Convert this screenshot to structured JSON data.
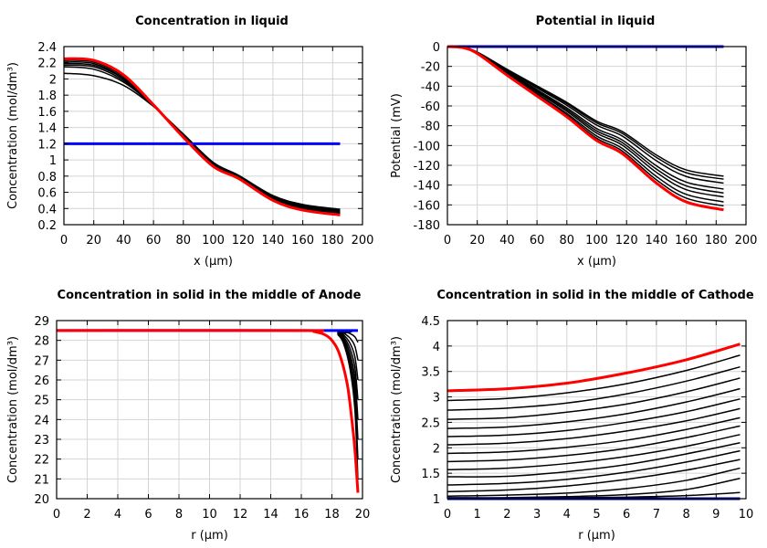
{
  "chart_data": [
    {
      "type": "line",
      "title": "Concentration in liquid",
      "xlabel": "x (µm)",
      "ylabel": "Concentration (mol/dm³)",
      "xlim": [
        0,
        200
      ],
      "ylim": [
        0.2,
        2.4
      ],
      "xticks": [
        0,
        20,
        40,
        60,
        80,
        100,
        120,
        140,
        160,
        180,
        200
      ],
      "yticks": [
        0.2,
        0.4,
        0.6,
        0.8,
        1,
        1.2,
        1.4,
        1.6,
        1.8,
        2,
        2.2,
        2.4
      ],
      "grid": true,
      "x": [
        0,
        20,
        40,
        60,
        80,
        100,
        117,
        140,
        160,
        185
      ],
      "series": [
        {
          "color": "#000000",
          "values": [
            2.07,
            2.04,
            1.92,
            1.66,
            1.32,
            0.97,
            0.81,
            0.56,
            0.45,
            0.39
          ]
        },
        {
          "color": "#000000",
          "values": [
            2.15,
            2.12,
            1.96,
            1.67,
            1.31,
            0.96,
            0.8,
            0.55,
            0.44,
            0.38
          ]
        },
        {
          "color": "#000000",
          "values": [
            2.17,
            2.15,
            1.98,
            1.67,
            1.31,
            0.95,
            0.8,
            0.54,
            0.43,
            0.37
          ]
        },
        {
          "color": "#000000",
          "values": [
            2.19,
            2.17,
            2.0,
            1.67,
            1.3,
            0.95,
            0.79,
            0.53,
            0.42,
            0.36
          ]
        },
        {
          "color": "#000000",
          "values": [
            2.21,
            2.19,
            2.01,
            1.67,
            1.3,
            0.94,
            0.79,
            0.52,
            0.41,
            0.35
          ]
        },
        {
          "color": "#000000",
          "values": [
            2.23,
            2.21,
            2.03,
            1.68,
            1.29,
            0.93,
            0.78,
            0.51,
            0.4,
            0.34
          ]
        },
        {
          "color": "#0000ff",
          "values": [
            1.2,
            1.2,
            1.2,
            1.2,
            1.2,
            1.2,
            1.2,
            1.2,
            1.2,
            1.2
          ]
        },
        {
          "color": "#ff0000",
          "values": [
            2.25,
            2.23,
            2.05,
            1.68,
            1.28,
            0.92,
            0.77,
            0.5,
            0.38,
            0.32
          ]
        }
      ]
    },
    {
      "type": "line",
      "title": "Potential in liquid",
      "xlabel": "x (µm)",
      "ylabel": "Potential (mV)",
      "xlim": [
        0,
        200
      ],
      "ylim": [
        -180,
        0
      ],
      "xticks": [
        0,
        20,
        40,
        60,
        80,
        100,
        120,
        140,
        160,
        180,
        200
      ],
      "yticks": [
        -180,
        -160,
        -140,
        -120,
        -100,
        -80,
        -60,
        -40,
        -20,
        0
      ],
      "grid": true,
      "x": [
        0,
        10,
        20,
        40,
        60,
        80,
        100,
        117,
        140,
        160,
        185
      ],
      "series": [
        {
          "color": "#000000",
          "values": [
            0,
            -0.8,
            -5.6,
            -23,
            -39.7,
            -56.4,
            -75.4,
            -85.8,
            -109.6,
            -124.7,
            -131
          ]
        },
        {
          "color": "#000000",
          "values": [
            0,
            -0.8,
            -5.7,
            -23.5,
            -40.6,
            -57.7,
            -77.1,
            -87.7,
            -112,
            -127.5,
            -134
          ]
        },
        {
          "color": "#000000",
          "values": [
            0,
            -0.8,
            -5.9,
            -24.2,
            -41.8,
            -59.4,
            -79.4,
            -90.3,
            -115.4,
            -131.3,
            -138
          ]
        },
        {
          "color": "#000000",
          "values": [
            0,
            -0.9,
            -6.1,
            -25.3,
            -43.6,
            -62,
            -82.9,
            -94.3,
            -120.5,
            -137,
            -144
          ]
        },
        {
          "color": "#000000",
          "values": [
            0,
            -0.9,
            -6.3,
            -26,
            -44.9,
            -63.7,
            -85.2,
            -96.9,
            -123.8,
            -140.8,
            -148
          ]
        },
        {
          "color": "#000000",
          "values": [
            0,
            -0.9,
            -6.4,
            -26.7,
            -46,
            -65.4,
            -87.5,
            -99.5,
            -127.1,
            -144.6,
            -152
          ]
        },
        {
          "color": "#000000",
          "values": [
            0,
            -1,
            -6.7,
            -27.6,
            -47.6,
            -67.6,
            -90.4,
            -102.8,
            -131.3,
            -149.4,
            -157
          ]
        },
        {
          "color": "#000000",
          "values": [
            0,
            -1,
            -6.8,
            -28.3,
            -48.8,
            -69.3,
            -92.7,
            -105.4,
            -134.7,
            -153.2,
            -161
          ]
        },
        {
          "color": "#0000ff",
          "values": [
            0,
            0,
            0,
            0,
            0,
            0,
            0,
            0,
            0,
            0,
            0
          ]
        },
        {
          "color": "#ff0000",
          "values": [
            0,
            -1,
            -7,
            -29,
            -50,
            -71,
            -95,
            -108,
            -138,
            -157,
            -165
          ]
        }
      ]
    },
    {
      "type": "line",
      "title": "Concentration in solid in the middle of Anode",
      "xlabel": "r (µm)",
      "ylabel": "Concentration (mol/dm³)",
      "xlim": [
        0,
        20
      ],
      "ylim": [
        20,
        29
      ],
      "xticks": [
        0,
        2,
        4,
        6,
        8,
        10,
        12,
        14,
        16,
        18,
        20
      ],
      "yticks": [
        20,
        21,
        22,
        23,
        24,
        25,
        26,
        27,
        28,
        29
      ],
      "grid": true,
      "x": [
        0,
        17.8,
        18.4,
        18.8,
        19.2,
        19.5,
        19.7
      ],
      "series": [
        {
          "color": "#000000",
          "values": [
            28.5,
            28.5,
            28.28,
            27.75,
            26.48,
            24.53,
            21.0
          ]
        },
        {
          "color": "#000000",
          "values": [
            28.5,
            28.5,
            28.31,
            27.85,
            26.75,
            25.06,
            22.0
          ]
        },
        {
          "color": "#000000",
          "values": [
            28.5,
            28.5,
            28.34,
            27.95,
            27.02,
            25.59,
            23.0
          ]
        },
        {
          "color": "#000000",
          "values": [
            28.5,
            28.5,
            28.37,
            28.05,
            27.29,
            26.12,
            24.0
          ]
        },
        {
          "color": "#000000",
          "values": [
            28.5,
            28.5,
            28.4,
            28.15,
            27.56,
            26.65,
            25.0
          ]
        },
        {
          "color": "#000000",
          "values": [
            28.5,
            28.5,
            28.43,
            28.25,
            27.83,
            27.18,
            26.0
          ]
        },
        {
          "color": "#000000",
          "values": [
            28.5,
            28.5,
            28.46,
            28.35,
            28.1,
            27.71,
            27.0
          ]
        },
        {
          "color": "#000000",
          "values": [
            28.5,
            28.5,
            28.48,
            28.44,
            28.34,
            28.18,
            27.9
          ]
        },
        {
          "color": "#0000ff",
          "values": [
            28.5,
            28.5,
            28.5,
            28.5,
            28.5,
            28.5,
            28.5
          ]
        },
        {
          "color": "#ff0000",
          "x": [
            0,
            16,
            16.8,
            17.5,
            18,
            18.5,
            19,
            19.3,
            19.5,
            19.7
          ],
          "values": [
            28.5,
            28.5,
            28.45,
            28.3,
            28.0,
            27.3,
            25.8,
            24.0,
            22.5,
            20.3
          ]
        }
      ]
    },
    {
      "type": "line",
      "title": "Concentration in solid in the middle of Cathode",
      "xlabel": "r (µm)",
      "ylabel": "Concentration (mol/dm³)",
      "xlim": [
        0,
        10
      ],
      "ylim": [
        1,
        4.5
      ],
      "xticks": [
        0,
        1,
        2,
        3,
        4,
        5,
        6,
        7,
        8,
        9,
        10
      ],
      "yticks": [
        1,
        1.5,
        2,
        2.5,
        3,
        3.5,
        4,
        4.5
      ],
      "grid": true,
      "x": [
        0,
        2,
        4,
        6,
        8,
        9.8
      ],
      "series": [
        {
          "color": "#000000",
          "values": [
            2.93,
            2.97,
            3.08,
            3.26,
            3.52,
            3.82
          ]
        },
        {
          "color": "#000000",
          "values": [
            2.74,
            2.78,
            2.88,
            3.06,
            3.31,
            3.59
          ]
        },
        {
          "color": "#000000",
          "values": [
            2.56,
            2.59,
            2.7,
            2.86,
            3.1,
            3.37
          ]
        },
        {
          "color": "#000000",
          "values": [
            2.38,
            2.41,
            2.51,
            2.67,
            2.9,
            3.16
          ]
        },
        {
          "color": "#000000",
          "values": [
            2.22,
            2.25,
            2.34,
            2.5,
            2.71,
            2.96
          ]
        },
        {
          "color": "#000000",
          "values": [
            2.06,
            2.09,
            2.18,
            2.33,
            2.53,
            2.77
          ]
        },
        {
          "color": "#000000",
          "values": [
            1.89,
            1.92,
            2.01,
            2.15,
            2.36,
            2.59
          ]
        },
        {
          "color": "#000000",
          "values": [
            1.73,
            1.76,
            1.85,
            1.99,
            2.2,
            2.43
          ]
        },
        {
          "color": "#000000",
          "values": [
            1.57,
            1.6,
            1.69,
            1.83,
            2.03,
            2.26
          ]
        },
        {
          "color": "#000000",
          "values": [
            1.43,
            1.44,
            1.53,
            1.67,
            1.88,
            2.1
          ]
        },
        {
          "color": "#000000",
          "values": [
            1.27,
            1.3,
            1.38,
            1.52,
            1.72,
            1.94
          ]
        },
        {
          "color": "#000000",
          "values": [
            1.14,
            1.17,
            1.25,
            1.38,
            1.56,
            1.77
          ]
        },
        {
          "color": "#000000",
          "values": [
            1.05,
            1.07,
            1.11,
            1.2,
            1.36,
            1.6
          ]
        },
        {
          "color": "#000000",
          "values": [
            1.02,
            1.02,
            1.04,
            1.08,
            1.18,
            1.4
          ]
        },
        {
          "color": "#000000",
          "values": [
            1.01,
            1.01,
            1.02,
            1.03,
            1.06,
            1.12
          ]
        },
        {
          "color": "#00008b",
          "values": [
            1.0,
            1.0,
            1.0,
            1.0,
            1.0,
            1.0
          ]
        },
        {
          "color": "#ff0000",
          "values": [
            3.12,
            3.16,
            3.27,
            3.47,
            3.73,
            4.04
          ]
        }
      ]
    }
  ]
}
